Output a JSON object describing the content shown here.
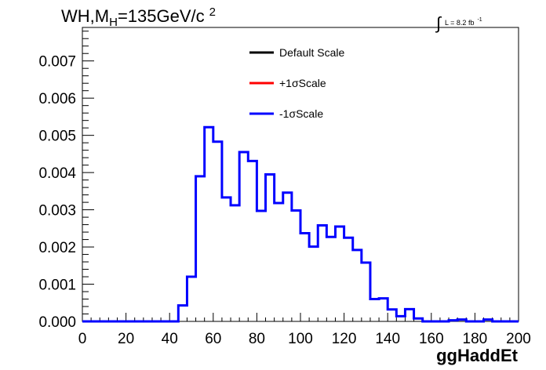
{
  "chart_data": {
    "type": "histogram",
    "title": "WH,M",
    "title_subscript": "H",
    "title_rest": "=135GeV/c",
    "title_superscript": "2",
    "luminosity": {
      "integral_symbol": "∫",
      "text": "L = 8.2 fb",
      "superscript": "-1"
    },
    "xlabel": "ggHaddEt",
    "xlim": [
      0,
      200
    ],
    "ylim": [
      0,
      0.0079
    ],
    "xticks": [
      0,
      20,
      40,
      60,
      80,
      100,
      120,
      140,
      160,
      180,
      200
    ],
    "xtick_labels": [
      "0",
      "20",
      "40",
      "60",
      "80",
      "100",
      "120",
      "140",
      "160",
      "180",
      "200"
    ],
    "yticks": [
      0,
      0.001,
      0.002,
      0.003,
      0.004,
      0.005,
      0.006,
      0.007
    ],
    "ytick_labels": [
      "0.000",
      "0.001",
      "0.002",
      "0.003",
      "0.004",
      "0.005",
      "0.006",
      "0.007"
    ],
    "bin_width": 4,
    "bin_start": 0,
    "legend": {
      "placement": "top-center",
      "entries": [
        {
          "label": "Default Scale",
          "color": "#000000"
        },
        {
          "label": "+1σScale",
          "color": "#ff0000"
        },
        {
          "label": "-1σScale",
          "color": "#0000ff"
        }
      ]
    },
    "series": [
      {
        "name": "-1σScale",
        "color": "#0000ff",
        "values": [
          0,
          0,
          0,
          0,
          0,
          0,
          0,
          0,
          0,
          0,
          0,
          0.00043,
          0.0012,
          0.0039,
          0.00522,
          0.00483,
          0.00333,
          0.00312,
          0.00455,
          0.00431,
          0.00297,
          0.00395,
          0.00318,
          0.00346,
          0.00298,
          0.00237,
          0.00201,
          0.00258,
          0.00227,
          0.00255,
          0.00225,
          0.00192,
          0.00158,
          0.0006,
          0.00062,
          0.00032,
          0.00014,
          0.00033,
          8e-05,
          0,
          0,
          0,
          3e-05,
          5e-05,
          0,
          0,
          5e-05,
          0,
          0,
          0
        ]
      }
    ]
  }
}
